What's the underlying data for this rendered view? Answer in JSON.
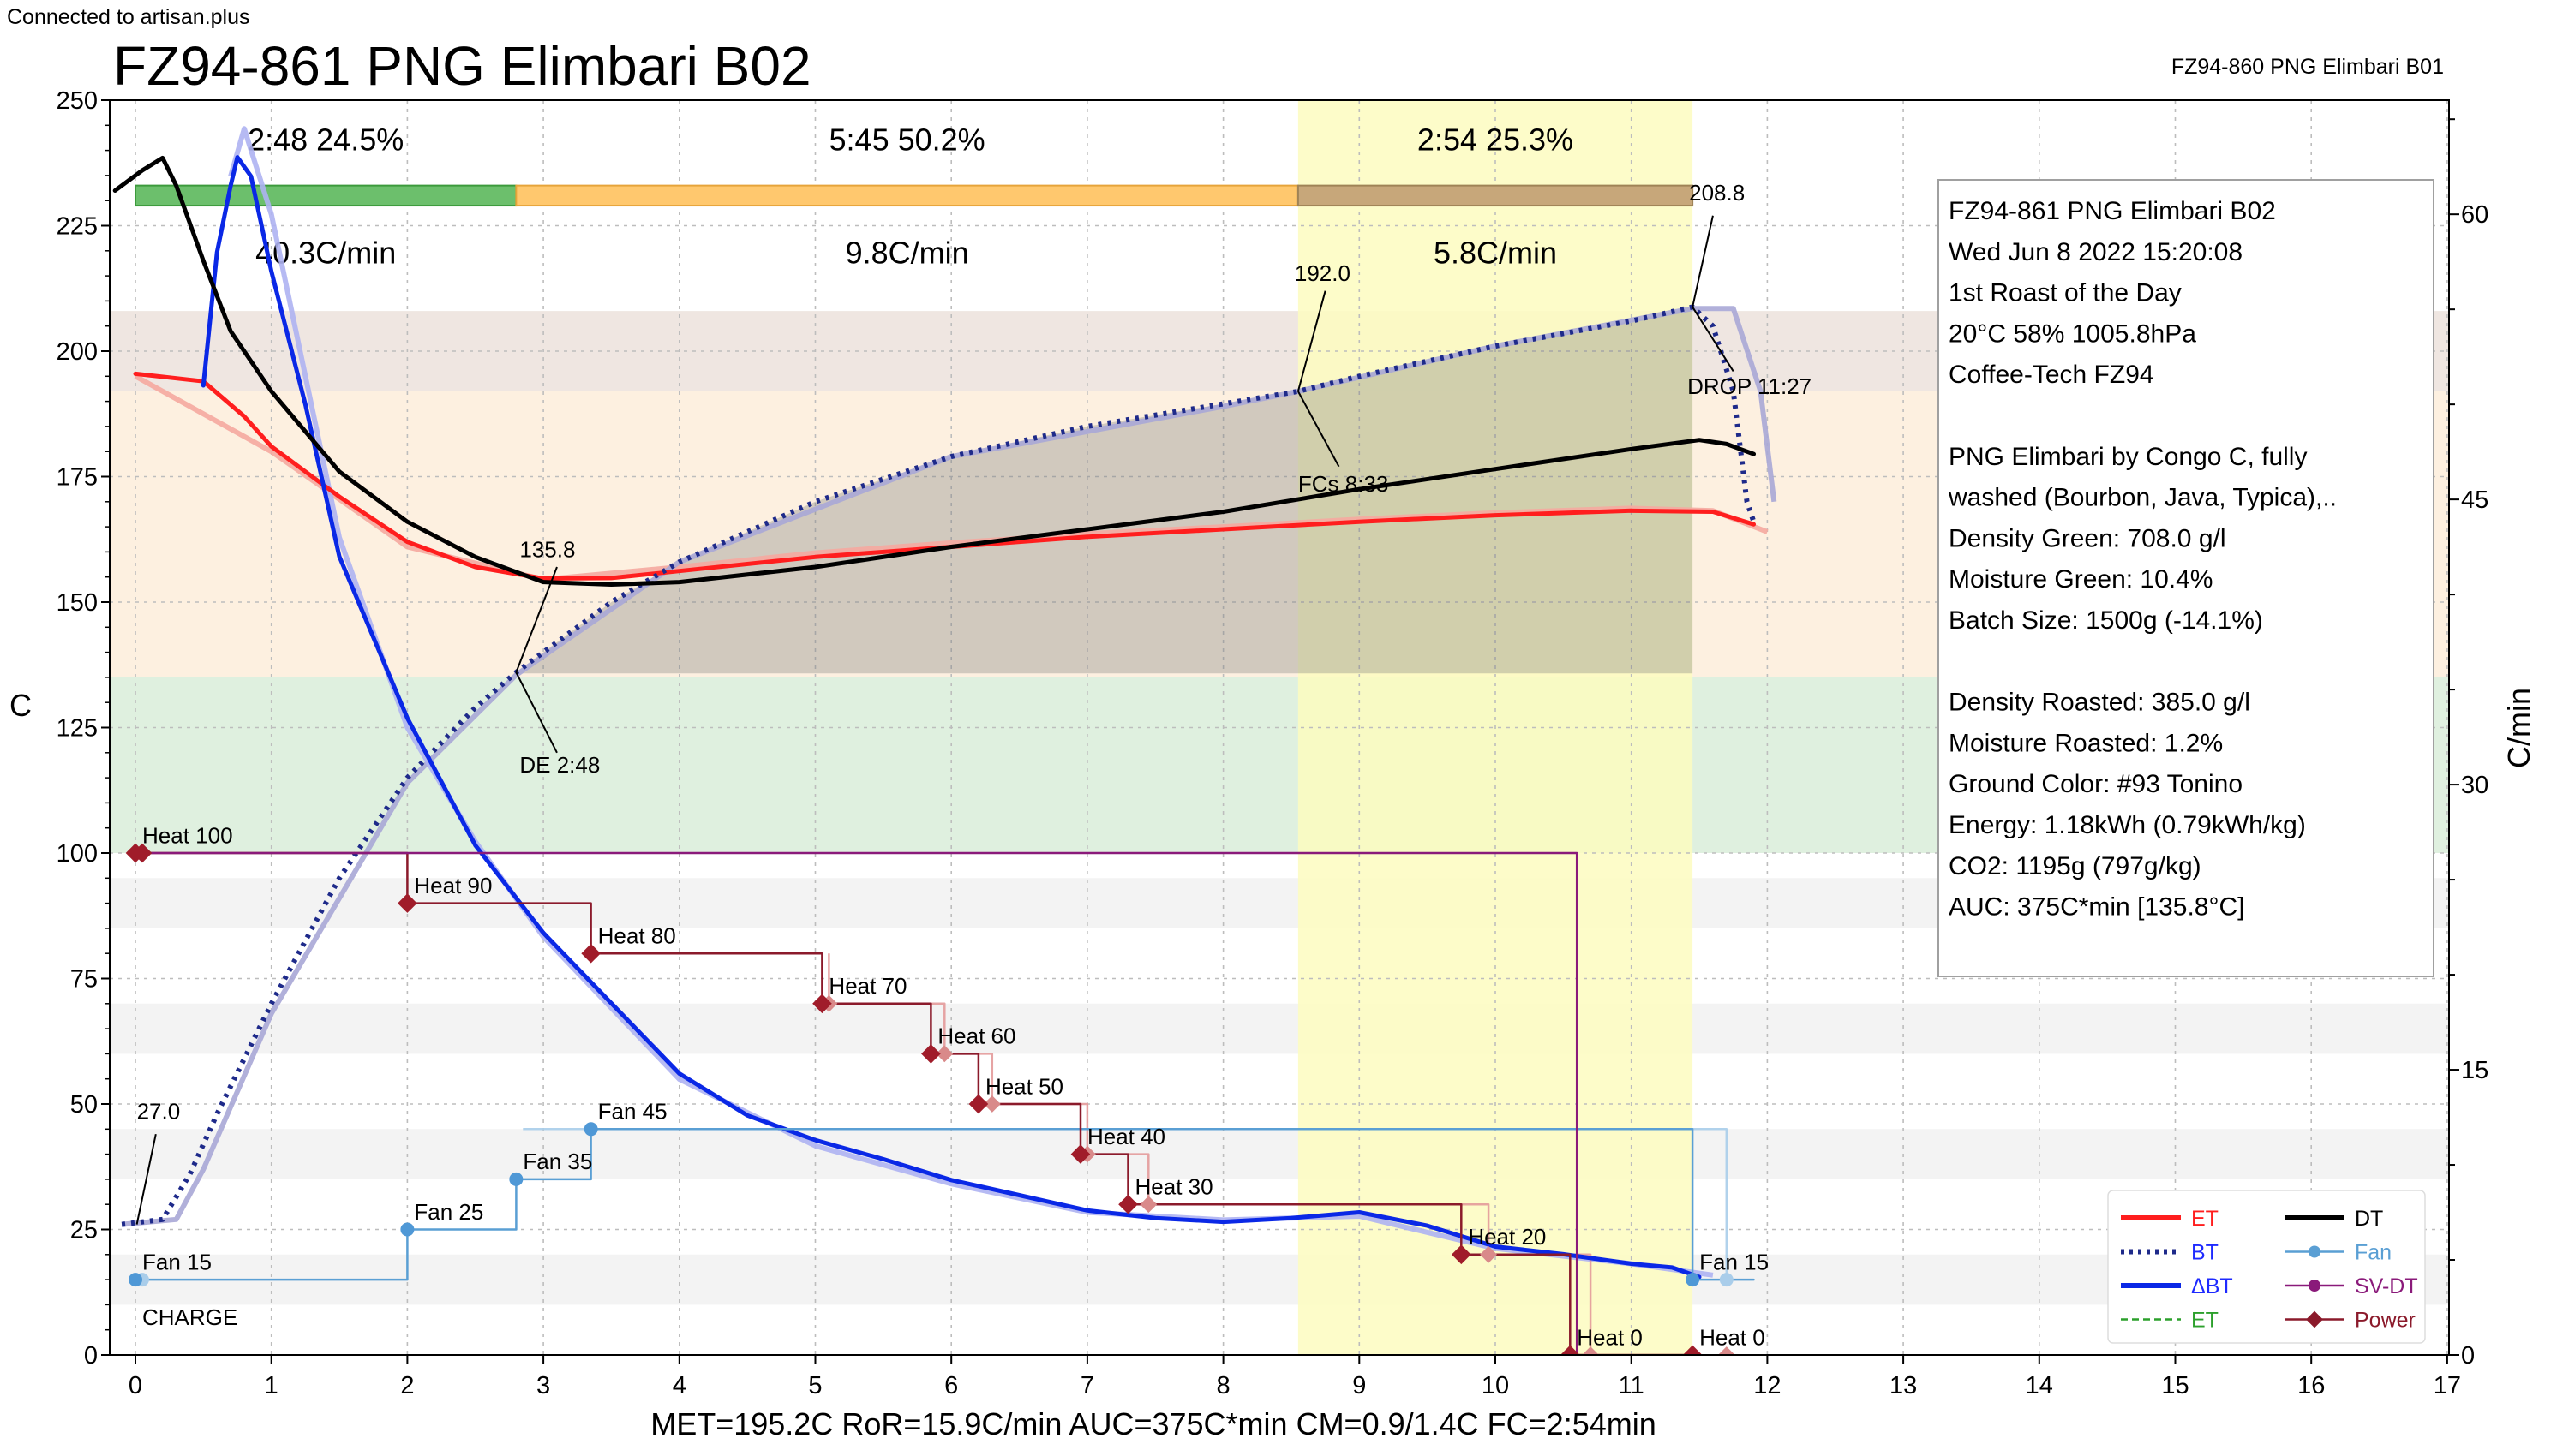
{
  "status": "Connected to artisan.plus",
  "chart_data": {
    "type": "line",
    "title": "FZ94-861 PNG Elimbari B02",
    "background_title": "FZ94-860 PNG Elimbari B01",
    "xlabel": "",
    "ylabel": "C",
    "y2label": "C/min",
    "xlim": [
      -0.15,
      17
    ],
    "ylim": [
      0,
      250
    ],
    "y2lim": [
      0,
      66
    ],
    "x_ticks": [
      "0",
      "1",
      "2",
      "3",
      "4",
      "5",
      "6",
      "7",
      "8",
      "9",
      "10",
      "11",
      "12",
      "13",
      "14",
      "15",
      "16",
      "17"
    ],
    "y_ticks": [
      "0",
      "25",
      "50",
      "75",
      "100",
      "125",
      "150",
      "175",
      "200",
      "225",
      "250"
    ],
    "y2_ticks": [
      "0",
      "15",
      "30",
      "45",
      "60"
    ],
    "phases": [
      {
        "label": "2:48  24.5%",
        "ror": "40.3C/min",
        "start": 0,
        "end": 2.8,
        "color": "#6cbf6c"
      },
      {
        "label": "5:45  50.2%",
        "ror": "9.8C/min",
        "start": 2.8,
        "end": 8.55,
        "color": "#ffc86e"
      },
      {
        "label": "2:54  25.3%",
        "ror": "5.8C/min",
        "start": 8.55,
        "end": 11.45,
        "color": "#c7a77a"
      }
    ],
    "bands": [
      {
        "from": 100,
        "to": 135,
        "color": "#dff0df"
      },
      {
        "from": 135,
        "to": 192,
        "color": "#fdf0e0"
      },
      {
        "from": 192,
        "to": 208,
        "color": "#efe6e1"
      }
    ],
    "fc_window": {
      "start": 8.55,
      "end": 11.45
    },
    "series": [
      {
        "name": "ET",
        "axis": "left",
        "style": "solid",
        "color": "#ff1e1e",
        "points": [
          [
            0,
            195.5
          ],
          [
            0.5,
            194
          ],
          [
            0.8,
            187
          ],
          [
            1,
            181
          ],
          [
            1.5,
            171
          ],
          [
            2,
            162
          ],
          [
            2.5,
            157
          ],
          [
            3,
            154.7
          ],
          [
            3.5,
            154.8
          ],
          [
            4,
            156.2
          ],
          [
            5,
            159
          ],
          [
            6,
            161
          ],
          [
            7,
            163
          ],
          [
            8,
            164.5
          ],
          [
            9,
            166
          ],
          [
            10,
            167.3
          ],
          [
            11,
            168.2
          ],
          [
            11.6,
            168
          ],
          [
            11.9,
            165.5
          ]
        ]
      },
      {
        "name": "BT",
        "axis": "left",
        "style": "dotted",
        "color": "#1e2a8a",
        "points": [
          [
            -0.1,
            26
          ],
          [
            0.2,
            27
          ],
          [
            0.4,
            36
          ],
          [
            0.6,
            48
          ],
          [
            1,
            70
          ],
          [
            1.5,
            95
          ],
          [
            2,
            115
          ],
          [
            2.5,
            129
          ],
          [
            2.8,
            136
          ],
          [
            3,
            140
          ],
          [
            3.5,
            150
          ],
          [
            4,
            158
          ],
          [
            5,
            170
          ],
          [
            6,
            179
          ],
          [
            7,
            185
          ],
          [
            8,
            189.5
          ],
          [
            8.55,
            192
          ],
          [
            9,
            195
          ],
          [
            10,
            201
          ],
          [
            11,
            206
          ],
          [
            11.45,
            208.8
          ],
          [
            11.6,
            205
          ],
          [
            11.75,
            192
          ],
          [
            11.85,
            170
          ],
          [
            11.9,
            166
          ]
        ]
      },
      {
        "name": "ΔBT",
        "axis": "right",
        "style": "solid",
        "color": "#0a28e6",
        "points": [
          [
            0.5,
            51
          ],
          [
            0.6,
            58
          ],
          [
            0.7,
            61.5
          ],
          [
            0.75,
            63
          ],
          [
            0.85,
            62
          ],
          [
            1,
            57
          ],
          [
            1.25,
            50
          ],
          [
            1.5,
            42
          ],
          [
            2,
            33.5
          ],
          [
            2.5,
            26.8
          ],
          [
            3,
            22.2
          ],
          [
            3.5,
            18.5
          ],
          [
            4,
            14.8
          ],
          [
            4.5,
            12.6
          ],
          [
            5,
            11.3
          ],
          [
            5.5,
            10.3
          ],
          [
            6,
            9.2
          ],
          [
            6.5,
            8.4
          ],
          [
            7,
            7.6
          ],
          [
            7.5,
            7.2
          ],
          [
            8,
            7
          ],
          [
            8.5,
            7.2
          ],
          [
            9,
            7.5
          ],
          [
            9.5,
            6.8
          ],
          [
            10,
            5.7
          ],
          [
            10.5,
            5.3
          ],
          [
            11,
            4.8
          ],
          [
            11.3,
            4.6
          ],
          [
            11.5,
            4.1
          ]
        ]
      },
      {
        "name": "DT",
        "axis": "left",
        "style": "solid",
        "color": "#000000",
        "points": [
          [
            -0.15,
            232
          ],
          [
            0.05,
            236
          ],
          [
            0.2,
            238.5
          ],
          [
            0.3,
            233
          ],
          [
            0.5,
            218
          ],
          [
            0.7,
            204
          ],
          [
            1,
            192
          ],
          [
            1.5,
            176
          ],
          [
            2,
            166
          ],
          [
            2.5,
            159
          ],
          [
            3,
            154
          ],
          [
            3.5,
            153.5
          ],
          [
            4,
            154
          ],
          [
            5,
            157
          ],
          [
            6,
            161
          ],
          [
            7,
            164.5
          ],
          [
            8,
            168
          ],
          [
            9,
            172.5
          ],
          [
            10,
            176.5
          ],
          [
            11,
            180.5
          ],
          [
            11.5,
            182.3
          ],
          [
            11.7,
            181.5
          ],
          [
            11.9,
            179.5
          ]
        ]
      },
      {
        "name": "Fan",
        "axis": "left",
        "style": "step",
        "color": "#5a9fd4",
        "points": [
          [
            0,
            15
          ],
          [
            2,
            15
          ],
          [
            2,
            25
          ],
          [
            2.8,
            25
          ],
          [
            2.8,
            35
          ],
          [
            3.35,
            35
          ],
          [
            3.35,
            45
          ],
          [
            11.45,
            45
          ],
          [
            11.45,
            15
          ],
          [
            11.9,
            15
          ]
        ]
      },
      {
        "name": "Power",
        "axis": "left",
        "style": "step",
        "color": "#8b1a2b",
        "points": [
          [
            0,
            100
          ],
          [
            2,
            100
          ],
          [
            2,
            90
          ],
          [
            3.35,
            90
          ],
          [
            3.35,
            80
          ],
          [
            5.05,
            80
          ],
          [
            5.05,
            70
          ],
          [
            5.85,
            70
          ],
          [
            5.85,
            60
          ],
          [
            6.2,
            60
          ],
          [
            6.2,
            50
          ],
          [
            6.95,
            50
          ],
          [
            6.95,
            40
          ],
          [
            7.3,
            40
          ],
          [
            7.3,
            30
          ],
          [
            9.75,
            30
          ],
          [
            9.75,
            20
          ],
          [
            10.55,
            20
          ],
          [
            10.55,
            0
          ],
          [
            11.45,
            0
          ]
        ]
      },
      {
        "name": "SV-DT",
        "axis": "left",
        "style": "step",
        "color": "#8a1a7a",
        "points": [
          [
            0,
            100
          ],
          [
            10.6,
            100
          ],
          [
            10.6,
            0
          ]
        ]
      }
    ],
    "background_series": [
      {
        "name": "ET",
        "color": "#f5a9a0",
        "points": [
          [
            0,
            195
          ],
          [
            1,
            180
          ],
          [
            2,
            161
          ],
          [
            3,
            154.5
          ],
          [
            4,
            157
          ],
          [
            5,
            159.8
          ],
          [
            6,
            161.8
          ],
          [
            7,
            163.6
          ],
          [
            8,
            165
          ],
          [
            9,
            166.5
          ],
          [
            10,
            167.8
          ],
          [
            11,
            168.7
          ],
          [
            11.6,
            168.2
          ],
          [
            12,
            164
          ]
        ]
      },
      {
        "name": "BT",
        "color": "#a8a7d6",
        "points": [
          [
            -0.1,
            26
          ],
          [
            0.3,
            27
          ],
          [
            0.5,
            37
          ],
          [
            1,
            68
          ],
          [
            2,
            114
          ],
          [
            2.8,
            135.5
          ],
          [
            4,
            158
          ],
          [
            6,
            179
          ],
          [
            8,
            189
          ],
          [
            8.55,
            192
          ],
          [
            10,
            201
          ],
          [
            11.45,
            208.5
          ],
          [
            11.75,
            208.5
          ],
          [
            11.95,
            192
          ],
          [
            12.05,
            170
          ]
        ]
      },
      {
        "name": "ΔBT",
        "color": "#aeb2f2",
        "points": [
          [
            0.7,
            62
          ],
          [
            0.8,
            64.5
          ],
          [
            1,
            60
          ],
          [
            1.5,
            43
          ],
          [
            2,
            33
          ],
          [
            2.5,
            27
          ],
          [
            3,
            22
          ],
          [
            4,
            14.5
          ],
          [
            5,
            11
          ],
          [
            6,
            9
          ],
          [
            7,
            7.5
          ],
          [
            8,
            7.1
          ],
          [
            9,
            7.3
          ],
          [
            10,
            5.6
          ],
          [
            11,
            4.8
          ],
          [
            11.6,
            4.2
          ]
        ]
      },
      {
        "name": "Fan",
        "color": "#a9cdea",
        "points": [
          [
            2.85,
            45
          ],
          [
            11.7,
            45
          ],
          [
            11.7,
            15
          ]
        ]
      },
      {
        "name": "Power",
        "color": "#e39a9a",
        "points": [
          [
            5.1,
            80
          ],
          [
            5.1,
            70
          ],
          [
            5.95,
            70
          ],
          [
            5.95,
            60
          ],
          [
            6.3,
            60
          ],
          [
            6.3,
            50
          ],
          [
            7,
            50
          ],
          [
            7,
            40
          ],
          [
            7.45,
            40
          ],
          [
            7.45,
            30
          ],
          [
            9.95,
            30
          ],
          [
            9.95,
            20
          ],
          [
            10.7,
            20
          ],
          [
            10.7,
            0
          ]
        ]
      }
    ],
    "annotations": [
      {
        "text": "27.0",
        "x": 0.01,
        "y": 47
      },
      {
        "text": "CHARGE",
        "x": 0,
        "y": 6
      },
      {
        "text": "135.8",
        "x": 2.8,
        "y": 159
      },
      {
        "text": "DE 2:48",
        "x": 2.8,
        "y": 116
      },
      {
        "text": "192.0",
        "x": 8.55,
        "y": 214
      },
      {
        "text": "FCs 8:33",
        "x": 8.55,
        "y": 172
      },
      {
        "text": "208.8",
        "x": 11.45,
        "y": 230
      },
      {
        "text": "DROP 11:27",
        "x": 11.45,
        "y": 191.5
      },
      {
        "text": "Heat 100",
        "x": 0,
        "y": 102
      },
      {
        "text": "Heat 90",
        "x": 2,
        "y": 92
      },
      {
        "text": "Heat 80",
        "x": 3.35,
        "y": 82
      },
      {
        "text": "Heat 70",
        "x": 5.05,
        "y": 72
      },
      {
        "text": "Heat 60",
        "x": 5.85,
        "y": 62
      },
      {
        "text": "Heat 50",
        "x": 6.2,
        "y": 52
      },
      {
        "text": "Heat 40",
        "x": 6.95,
        "y": 42
      },
      {
        "text": "Heat 30",
        "x": 7.3,
        "y": 32
      },
      {
        "text": "Heat 20",
        "x": 9.75,
        "y": 22
      },
      {
        "text": "Heat 0",
        "x": 10.55,
        "y": 2
      },
      {
        "text": "Heat 0",
        "x": 11.45,
        "y": 2
      },
      {
        "text": "Fan 15",
        "x": 0,
        "y": 17
      },
      {
        "text": "Fan 25",
        "x": 2,
        "y": 27
      },
      {
        "text": "Fan 35",
        "x": 2.8,
        "y": 37
      },
      {
        "text": "Fan 45",
        "x": 3.35,
        "y": 47
      },
      {
        "text": "Fan 15",
        "x": 11.45,
        "y": 17
      }
    ],
    "markers": {
      "power": [
        [
          0,
          100
        ],
        [
          0.05,
          100
        ],
        [
          2,
          90
        ],
        [
          3.35,
          80
        ],
        [
          5.05,
          70
        ],
        [
          5.85,
          60
        ],
        [
          6.2,
          50
        ],
        [
          6.95,
          40
        ],
        [
          7.3,
          30
        ],
        [
          9.75,
          20
        ],
        [
          10.55,
          0
        ],
        [
          11.45,
          0
        ]
      ],
      "power_bg": [
        [
          5.1,
          70
        ],
        [
          5.95,
          60
        ],
        [
          6.3,
          50
        ],
        [
          7,
          40
        ],
        [
          7.45,
          30
        ],
        [
          9.95,
          20
        ],
        [
          10.7,
          0
        ],
        [
          11.7,
          0
        ]
      ],
      "fan": [
        [
          0,
          15
        ],
        [
          2,
          25
        ],
        [
          2.8,
          35
        ],
        [
          3.35,
          45
        ],
        [
          11.45,
          15
        ]
      ],
      "fan_bg": [
        [
          0.05,
          15
        ],
        [
          11.7,
          15
        ]
      ]
    },
    "footer": "MET=195.2C   RoR=15.9C/min   AUC=375C*min   CM=0.9/1.4C   FC=2:54min",
    "legend": [
      "ET",
      "BT",
      "ΔBT",
      "ET",
      "DT",
      "Fan",
      "SV-DT",
      "Power"
    ]
  },
  "roast_info": [
    "FZ94-861 PNG Elimbari B02",
    "Wed Jun 8 2022 15:20:08",
    "1st Roast of the Day",
    "20°C  58%  1005.8hPa",
    "Coffee-Tech FZ94",
    "",
    "PNG Elimbari by Congo C, fully",
    " washed (Bourbon, Java, Typica),..",
    "Density Green: 708.0 g/l",
    "Moisture Green: 10.4%",
    "Batch Size: 1500g (-14.1%)",
    "",
    "Density Roasted: 385.0 g/l",
    "Moisture Roasted: 1.2%",
    "Ground Color: #93 Tonino",
    "Energy: 1.18kWh (0.79kWh/kg)",
    "CO2: 1195g (797g/kg)",
    "AUC: 375C*min [135.8°C]"
  ]
}
